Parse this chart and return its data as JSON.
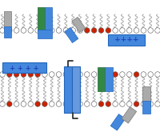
{
  "bg_color": "#ffffff",
  "white_head": "#ffffff",
  "red_head": "#cc2200",
  "blue": "#4488dd",
  "blue_dark": "#2266bb",
  "blue_light": "#6699dd",
  "green": "#338844",
  "green_dark": "#226633",
  "grey": "#aaaaaa",
  "grey_dark": "#777777",
  "tail_color": "#aaaaaa",
  "head_edge": "#555555",
  "plus_text": "#2244bb",
  "minus_text": "#cc2200"
}
